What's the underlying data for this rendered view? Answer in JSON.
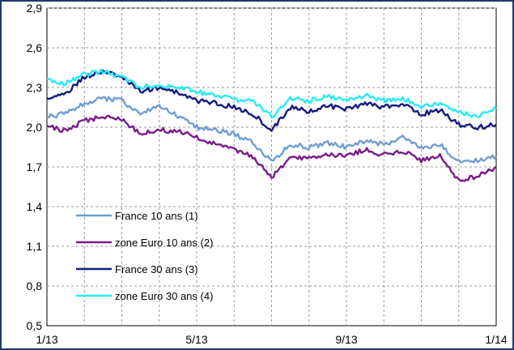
{
  "chart_data": {
    "type": "line",
    "title": "",
    "xlabel": "",
    "ylabel": "",
    "x_ticks": [
      "1/13",
      "5/13",
      "9/13",
      "1/14"
    ],
    "x_domain_months": [
      0,
      12
    ],
    "ylim": [
      0.5,
      2.9
    ],
    "y_ticks": [
      "0,5",
      "0,8",
      "1,1",
      "1,4",
      "1,7",
      "2,0",
      "2,3",
      "2,6",
      "2,9"
    ],
    "y_tick_values": [
      0.5,
      0.8,
      1.1,
      1.4,
      1.7,
      2.0,
      2.3,
      2.6,
      2.9
    ],
    "grid": "horizontal and vertical dashed",
    "legend_position": "lower-left",
    "series": [
      {
        "name": "France 10 ans (1)",
        "color": "#6f9ed4",
        "x_months": [
          0,
          0.5,
          1,
          1.5,
          2,
          2.5,
          3,
          3.5,
          4,
          4.5,
          5,
          5.5,
          6,
          6.5,
          7,
          7.5,
          8,
          8.5,
          9,
          9.5,
          10,
          10.5,
          11,
          11.5,
          12
        ],
        "values": [
          2.08,
          2.1,
          2.18,
          2.22,
          2.2,
          2.1,
          2.16,
          2.08,
          2.0,
          1.98,
          1.95,
          1.88,
          1.74,
          1.87,
          1.85,
          1.88,
          1.85,
          1.9,
          1.87,
          1.92,
          1.84,
          1.87,
          1.74,
          1.75,
          1.78
        ]
      },
      {
        "name": "zone Euro 10 ans (2)",
        "color": "#7a1a8c",
        "x_months": [
          0,
          0.5,
          1,
          1.5,
          2,
          2.5,
          3,
          3.5,
          4,
          4.5,
          5,
          5.5,
          6,
          6.5,
          7,
          7.5,
          8,
          8.5,
          9,
          9.5,
          10,
          10.5,
          11,
          11.5,
          12
        ],
        "values": [
          2.01,
          1.97,
          2.05,
          2.08,
          2.06,
          1.95,
          1.98,
          1.97,
          1.92,
          1.87,
          1.83,
          1.78,
          1.62,
          1.76,
          1.77,
          1.8,
          1.78,
          1.83,
          1.79,
          1.82,
          1.75,
          1.78,
          1.6,
          1.63,
          1.7
        ]
      },
      {
        "name": "France 30 ans (3)",
        "color": "#141a80",
        "x_months": [
          0,
          0.5,
          1,
          1.5,
          2,
          2.5,
          3,
          3.5,
          4,
          4.5,
          5,
          5.5,
          6,
          6.5,
          7,
          7.5,
          8,
          8.5,
          9,
          9.5,
          10,
          10.5,
          11,
          11.5,
          12
        ],
        "values": [
          2.22,
          2.25,
          2.38,
          2.42,
          2.38,
          2.27,
          2.3,
          2.26,
          2.2,
          2.18,
          2.15,
          2.1,
          1.98,
          2.15,
          2.12,
          2.16,
          2.14,
          2.18,
          2.15,
          2.17,
          2.1,
          2.13,
          2.02,
          2.0,
          2.02
        ]
      },
      {
        "name": "zone Euro 30 ans (4)",
        "color": "#27ecf5",
        "x_months": [
          0,
          0.5,
          1,
          1.5,
          2,
          2.5,
          3,
          3.5,
          4,
          4.5,
          5,
          5.5,
          6,
          6.5,
          7,
          7.5,
          8,
          8.5,
          9,
          9.5,
          10,
          10.5,
          11,
          11.5,
          12
        ],
        "values": [
          2.36,
          2.33,
          2.4,
          2.42,
          2.38,
          2.3,
          2.32,
          2.3,
          2.27,
          2.24,
          2.21,
          2.2,
          2.08,
          2.22,
          2.2,
          2.23,
          2.21,
          2.24,
          2.2,
          2.22,
          2.16,
          2.18,
          2.11,
          2.08,
          2.14
        ]
      }
    ]
  }
}
